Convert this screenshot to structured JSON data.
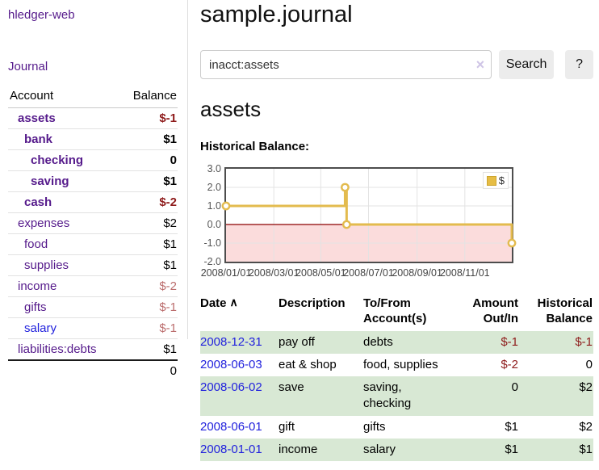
{
  "sidebar": {
    "brand": "hledger-web",
    "journal_link": "Journal",
    "accounts": {
      "header_account": "Account",
      "header_balance": "Balance",
      "rows": [
        {
          "name": "assets",
          "balance": "$-1"
        },
        {
          "name": "bank",
          "balance": "$1"
        },
        {
          "name": "checking",
          "balance": "0"
        },
        {
          "name": "saving",
          "balance": "$1"
        },
        {
          "name": "cash",
          "balance": "$-2"
        },
        {
          "name": "expenses",
          "balance": "$2"
        },
        {
          "name": "food",
          "balance": "$1"
        },
        {
          "name": "supplies",
          "balance": "$1"
        },
        {
          "name": "income",
          "balance": "$-2"
        },
        {
          "name": "gifts",
          "balance": "$-1"
        },
        {
          "name": "salary",
          "balance": "$-1"
        },
        {
          "name": "liabilities:debts",
          "balance": "$1"
        }
      ],
      "total": "0"
    }
  },
  "main": {
    "title": "sample.journal",
    "search": {
      "value": "inacct:assets",
      "clear_icon": "×",
      "search_button": "Search",
      "help_button": "?"
    },
    "heading": "assets",
    "chart_title": "Historical Balance:"
  },
  "chart_data": {
    "type": "line",
    "step": true,
    "title": "Historical Balance",
    "legend": "$",
    "legend_position": "top-right",
    "grid": true,
    "ylim": [
      -2,
      3
    ],
    "xlim_days": [
      0,
      365
    ],
    "y_ticks": [
      "3.0",
      "2.0",
      "1.0",
      "0.0",
      "-1.0",
      "-2.0"
    ],
    "x_ticks": [
      {
        "label": "2008/01/01",
        "day": 0
      },
      {
        "label": "2008/03/01",
        "day": 61
      },
      {
        "label": "2008/05/01",
        "day": 121
      },
      {
        "label": "2008/07/01",
        "day": 182
      },
      {
        "label": "2008/09/01",
        "day": 244
      },
      {
        "label": "2008/11/01",
        "day": 305
      }
    ],
    "series": [
      {
        "name": "$",
        "color": "#e3bb4e",
        "points": [
          {
            "date": "2008-01-01",
            "day": 0,
            "value": 1
          },
          {
            "date": "2008-06-01",
            "day": 152,
            "value": 2
          },
          {
            "date": "2008-06-03",
            "day": 154,
            "value": 0
          },
          {
            "date": "2008-12-31",
            "day": 365,
            "value": -1
          }
        ]
      }
    ],
    "negative_region_color": "#fbdcdc",
    "zero_line_color": "#8b0000",
    "grid_color": "#e3e3e3"
  },
  "register": {
    "headers": {
      "date": "Date",
      "sort_icon": "∧",
      "description": "Description",
      "accounts": "To/From Account(s)",
      "amount": "Amount Out/In",
      "balance": "Historical Balance"
    },
    "rows": [
      {
        "date": "2008-12-31",
        "description": "pay off",
        "accounts": "debts",
        "amount": "$-1",
        "balance": "$-1"
      },
      {
        "date": "2008-06-03",
        "description": "eat & shop",
        "accounts": "food, supplies",
        "amount": "$-2",
        "balance": "0"
      },
      {
        "date": "2008-06-02",
        "description": "save",
        "accounts": "saving, checking",
        "amount": "0",
        "balance": "$2"
      },
      {
        "date": "2008-06-01",
        "description": "gift",
        "accounts": "gifts",
        "amount": "$1",
        "balance": "$2"
      },
      {
        "date": "2008-01-01",
        "description": "income",
        "accounts": "salary",
        "amount": "$1",
        "balance": "$1"
      }
    ]
  },
  "colors": {
    "link_purple": "#551a8b",
    "link_blue": "#2222dd",
    "negative_strong": "#8e1b1b",
    "negative_muted": "#bb6d6d",
    "row_green": "#d8e8d4",
    "button_bg": "#ececec",
    "chart_border": "#4d4d4d"
  }
}
